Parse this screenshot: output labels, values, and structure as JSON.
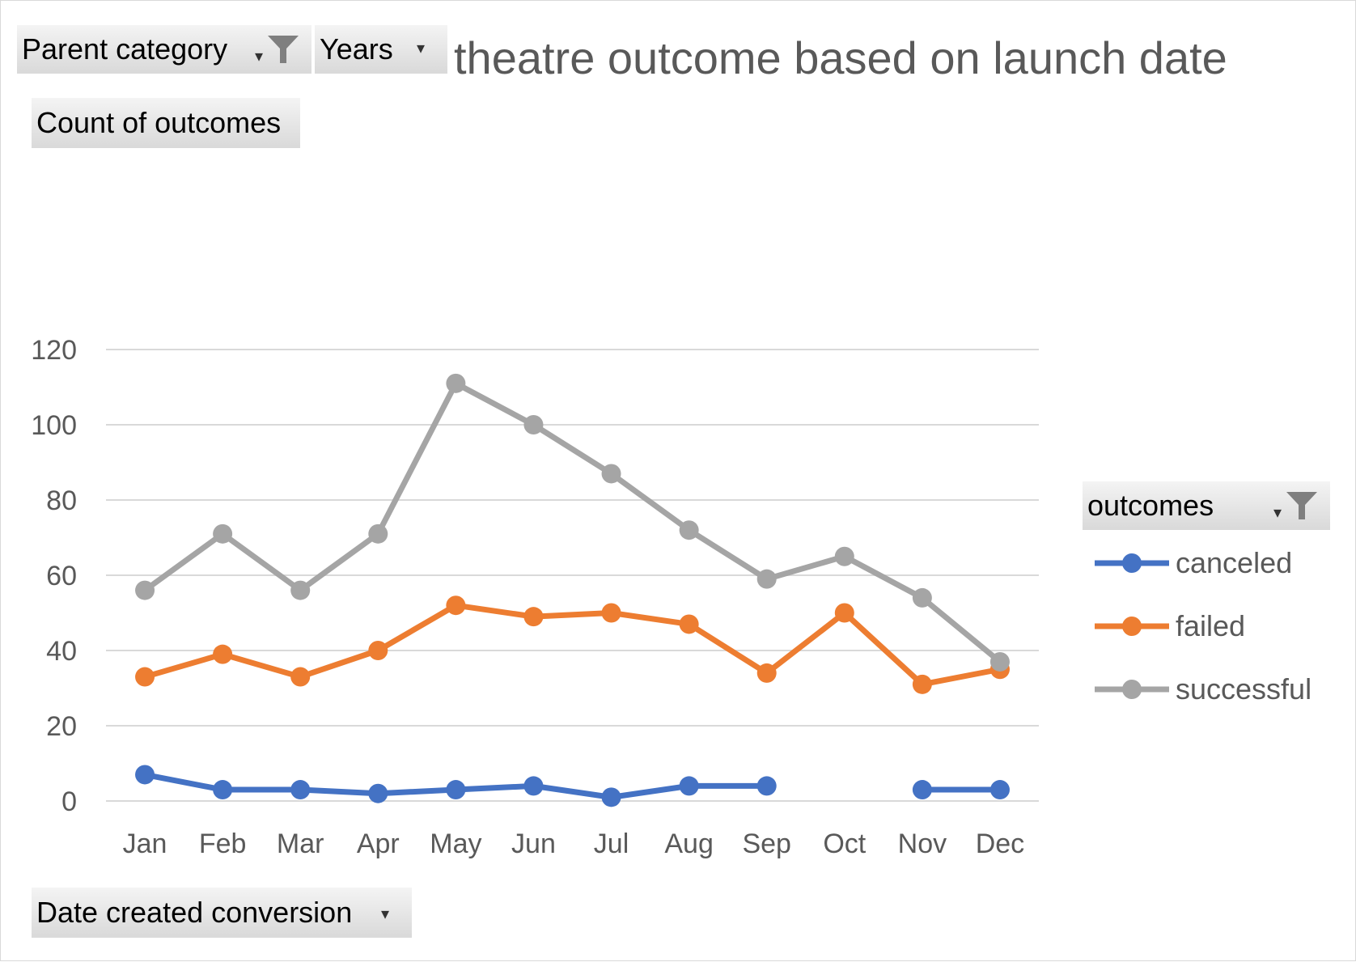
{
  "filters": {
    "parent_category": {
      "label": "Parent category",
      "icon": "filter-funnel-icon"
    },
    "years": {
      "label": "Years",
      "icon": "dropdown-arrow-icon"
    },
    "values_field": {
      "label": "Count of outcomes"
    },
    "axis_field": {
      "label": "Date created conversion",
      "icon": "dropdown-arrow-icon"
    },
    "legend_field": {
      "label": "outcomes",
      "icon": "filter-funnel-icon"
    }
  },
  "chart_data": {
    "type": "line",
    "title": "theatre outcome based on launch date",
    "xlabel": "",
    "ylabel": "",
    "ylim": [
      0,
      120
    ],
    "yticks": [
      0,
      20,
      40,
      60,
      80,
      100,
      120
    ],
    "grid": true,
    "legend_position": "right",
    "categories": [
      "Jan",
      "Feb",
      "Mar",
      "Apr",
      "May",
      "Jun",
      "Jul",
      "Aug",
      "Sep",
      "Oct",
      "Nov",
      "Dec"
    ],
    "series": [
      {
        "name": "canceled",
        "color": "#4472c4",
        "values": [
          7,
          3,
          3,
          2,
          3,
          4,
          1,
          4,
          4,
          null,
          3,
          3
        ]
      },
      {
        "name": "failed",
        "color": "#ed7d31",
        "values": [
          33,
          39,
          33,
          40,
          52,
          49,
          50,
          47,
          34,
          50,
          31,
          35
        ]
      },
      {
        "name": "successful",
        "color": "#a5a5a5",
        "values": [
          56,
          71,
          56,
          71,
          111,
          100,
          87,
          72,
          59,
          65,
          54,
          37
        ]
      }
    ]
  }
}
